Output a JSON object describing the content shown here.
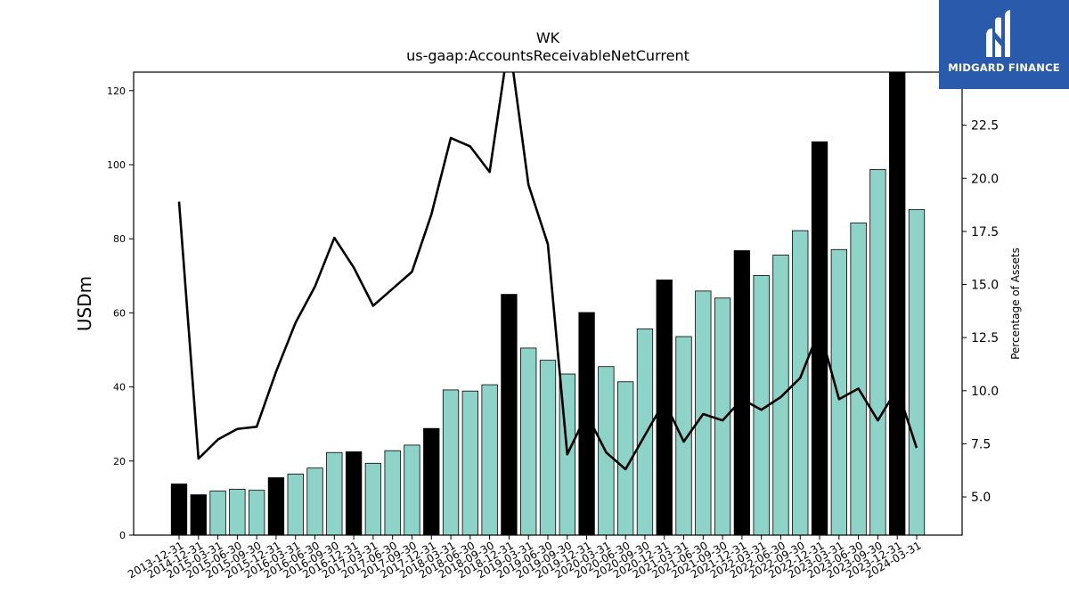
{
  "logo": {
    "text": "MIDGARD FINANCE",
    "background": "#2a5aab",
    "icon": "midgard-m-icon"
  },
  "chart_data": {
    "type": "bar",
    "title": "WK",
    "subtitle": "us-gaap:AccountsReceivableNetCurrent",
    "ylabel": "USDm",
    "y2label": "Percentage of Assets",
    "ylim": [
      0,
      125
    ],
    "y2lim": [
      3.2,
      25.0
    ],
    "yticks": [
      0,
      20,
      40,
      60,
      80,
      100,
      120
    ],
    "y2ticks": [
      "5.0",
      "7.5",
      "10.0",
      "12.5",
      "15.0",
      "17.5",
      "20.0",
      "22.5"
    ],
    "colors": {
      "annual_bar": "#000000",
      "quarter_bar": "#8dd3c7",
      "line": "#000000"
    },
    "categories": [
      "2013-12-31",
      "2014-12-31",
      "2015-03-31",
      "2015-06-30",
      "2015-09-30",
      "2015-12-31",
      "2016-03-31",
      "2016-06-30",
      "2016-09-30",
      "2016-12-31",
      "2017-03-31",
      "2017-06-30",
      "2017-09-30",
      "2017-12-31",
      "2018-03-31",
      "2018-06-30",
      "2018-09-30",
      "2018-12-31",
      "2019-03-31",
      "2019-06-30",
      "2019-09-30",
      "2019-12-31",
      "2020-03-31",
      "2020-06-30",
      "2020-09-30",
      "2020-12-31",
      "2021-03-31",
      "2021-06-30",
      "2021-09-30",
      "2021-12-31",
      "2022-03-31",
      "2022-06-30",
      "2022-09-30",
      "2022-12-31",
      "2023-03-31",
      "2023-06-30",
      "2023-09-30",
      "2023-12-31",
      "2024-03-31"
    ],
    "annual": [
      true,
      true,
      false,
      false,
      false,
      true,
      false,
      false,
      false,
      true,
      false,
      false,
      false,
      true,
      false,
      false,
      false,
      true,
      false,
      false,
      false,
      true,
      false,
      false,
      false,
      true,
      false,
      false,
      false,
      true,
      false,
      false,
      false,
      true,
      false,
      false,
      false,
      true,
      false
    ],
    "series": [
      {
        "name": "",
        "kind": "bar",
        "axis": "left",
        "values": [
          13.8,
          10.9,
          11.9,
          12.4,
          12.1,
          15.5,
          16.5,
          18.1,
          22.3,
          22.5,
          19.4,
          22.8,
          24.3,
          28.8,
          39.2,
          38.9,
          40.6,
          65.0,
          50.5,
          47.2,
          43.5,
          60.1,
          45.5,
          41.4,
          55.7,
          68.9,
          53.6,
          65.9,
          64.0,
          76.8,
          70.1,
          75.6,
          82.2,
          106.2,
          77.1,
          84.3,
          98.7,
          125.8,
          87.9
        ]
      },
      {
        "name": "",
        "kind": "line",
        "axis": "right",
        "values": [
          18.9,
          6.8,
          7.7,
          8.2,
          8.3,
          10.9,
          13.2,
          14.9,
          17.2,
          15.8,
          14.0,
          14.8,
          15.6,
          18.3,
          21.9,
          21.5,
          20.3,
          26.5,
          19.7,
          16.9,
          7.0,
          8.9,
          7.1,
          6.3,
          7.9,
          9.5,
          7.6,
          8.9,
          8.6,
          9.6,
          9.1,
          9.7,
          10.6,
          12.9,
          9.6,
          10.1,
          8.6,
          10.1,
          7.3
        ]
      }
    ]
  }
}
